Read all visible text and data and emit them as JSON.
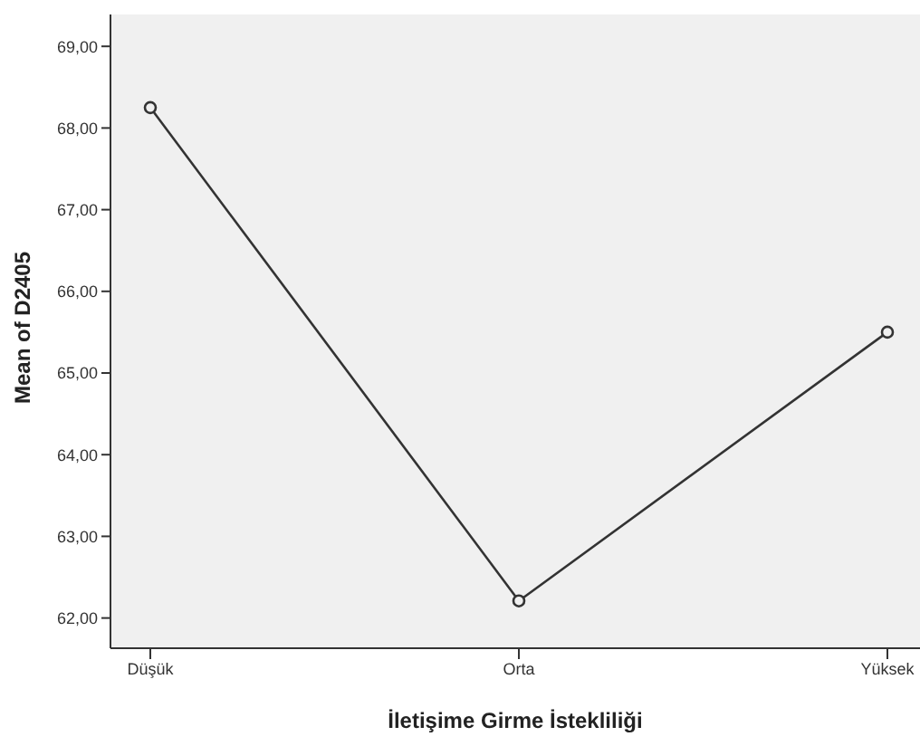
{
  "chart_data": {
    "type": "line",
    "xlabel": "İletişime Girme İstekliliği",
    "ylabel": "Mean of D2405",
    "categories": [
      "Düşük",
      "Orta",
      "Yüksek"
    ],
    "series": [
      {
        "color": "#333333",
        "values": [
          68.25,
          62.21,
          65.5
        ]
      }
    ],
    "ylim": [
      61.63,
      69.39
    ],
    "yticks": [
      {
        "value": 62,
        "label": "62,00"
      },
      {
        "value": 63,
        "label": "63,00"
      },
      {
        "value": 64,
        "label": "64,00"
      },
      {
        "value": 65,
        "label": "65,00"
      },
      {
        "value": 66,
        "label": "66,00"
      },
      {
        "value": 67,
        "label": "67,00"
      },
      {
        "value": 68,
        "label": "68,00"
      },
      {
        "value": 69,
        "label": "69,00"
      }
    ],
    "grid": false,
    "legend": false,
    "marker": "circle",
    "line_style": "solid"
  }
}
